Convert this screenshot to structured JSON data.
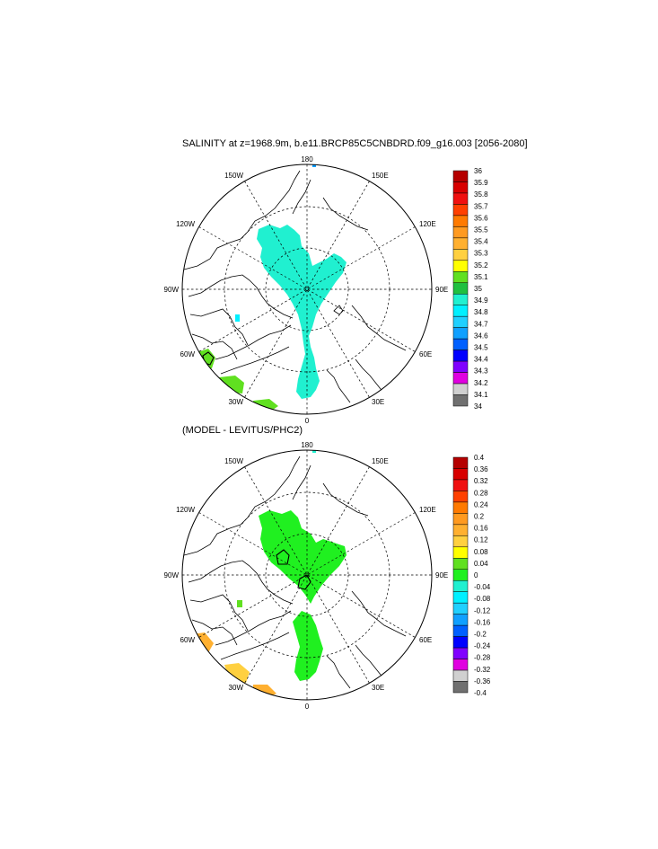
{
  "panels": [
    {
      "title": "SALINITY at z=1968.9m, b.e11.BRCP85C5CNBDRD.f09_g16.003 [2056-2080]",
      "longitude_labels": [
        "180",
        "150E",
        "120E",
        "90E",
        "60E",
        "30E",
        "0",
        "30W",
        "60W",
        "90W",
        "120W",
        "150W"
      ],
      "colorbar": {
        "labels": [
          "36",
          "35.9",
          "35.8",
          "35.7",
          "35.6",
          "35.5",
          "35.4",
          "35.3",
          "35.2",
          "35.1",
          "35",
          "34.9",
          "34.8",
          "34.7",
          "34.6",
          "34.5",
          "34.4",
          "34.3",
          "34.2",
          "34.1",
          "34"
        ],
        "colors": [
          "#b50000",
          "#d80000",
          "#f01010",
          "#ff4000",
          "#ff7a00",
          "#ff9a20",
          "#ffb030",
          "#ffd040",
          "#ffff00",
          "#60e020",
          "#20c040",
          "#20f0d0",
          "#00f0ff",
          "#20d0ff",
          "#10a0ff",
          "#0060ff",
          "#0000ff",
          "#8000ff",
          "#e000e0",
          "#d0d0d0",
          "#707070"
        ]
      }
    },
    {
      "title": "(MODEL - LEVITUS/PHC2)",
      "longitude_labels": [
        "180",
        "150E",
        "120E",
        "90E",
        "60E",
        "30E",
        "0",
        "30W",
        "60W",
        "90W",
        "120W",
        "150W"
      ],
      "colorbar": {
        "labels": [
          "0.4",
          "0.36",
          "0.32",
          "0.28",
          "0.24",
          "0.2",
          "0.16",
          "0.12",
          "0.08",
          "0.04",
          "0",
          "-0.04",
          "-0.08",
          "-0.12",
          "-0.16",
          "-0.2",
          "-0.24",
          "-0.28",
          "-0.32",
          "-0.36",
          "-0.4"
        ],
        "colors": [
          "#b50000",
          "#d80000",
          "#f01010",
          "#ff4000",
          "#ff7a00",
          "#ff9a20",
          "#ffb030",
          "#ffd040",
          "#ffff00",
          "#60e020",
          "#20f020",
          "#20f0d0",
          "#00f0ff",
          "#20d0ff",
          "#10a0ff",
          "#0060ff",
          "#0000ff",
          "#8000ff",
          "#e000e0",
          "#d0d0d0",
          "#707070"
        ]
      }
    }
  ]
}
